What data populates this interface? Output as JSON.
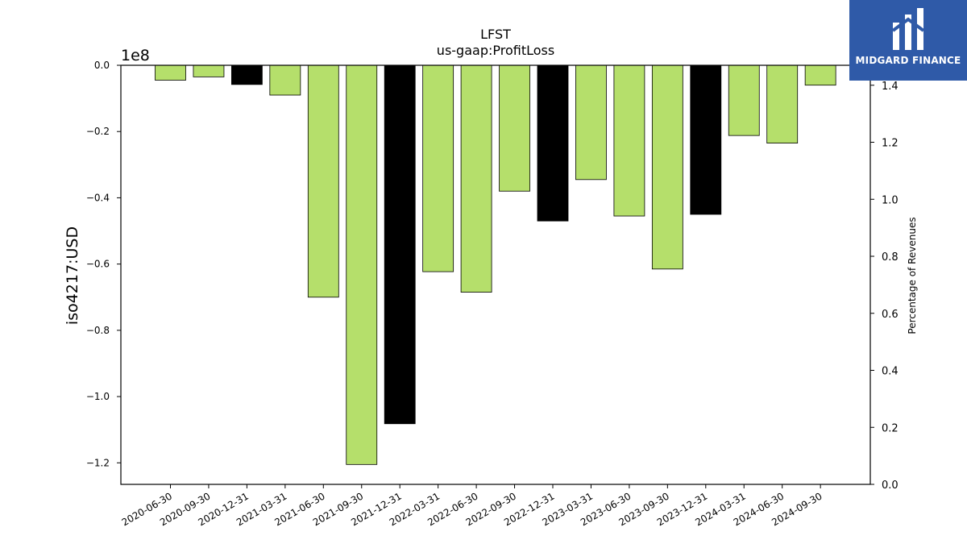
{
  "logo": {
    "text": "MIDGARD FINANCE"
  },
  "colors": {
    "background": "#ffffff",
    "bar_default": "#b5df6b",
    "bar_q4": "#000000",
    "logo_bg": "#2f5aa8"
  },
  "chart_data": {
    "type": "bar",
    "title": "LFST",
    "subtitle": "us-gaap:ProfitLoss",
    "ylabel": "iso4217:USD",
    "y_offset_label": "1e8",
    "y2label": "Percentage of Revenues",
    "ylim": [
      -1.265,
      0.0
    ],
    "y2lim": [
      0.0,
      1.47
    ],
    "yticks": [
      "0.0",
      "−0.2",
      "−0.4",
      "−0.6",
      "−0.8",
      "−1.0",
      "−1.2"
    ],
    "ytick_values": [
      0.0,
      -0.2,
      -0.4,
      -0.6,
      -0.8,
      -1.0,
      -1.2
    ],
    "y2ticks": [
      "0.0",
      "0.2",
      "0.4",
      "0.6",
      "0.8",
      "1.0",
      "1.2",
      "1.4"
    ],
    "y2tick_values": [
      0.0,
      0.2,
      0.4,
      0.6,
      0.8,
      1.0,
      1.2,
      1.4
    ],
    "categories": [
      "2020-06-30",
      "2020-09-30",
      "2020-12-31",
      "2021-03-31",
      "2021-06-30",
      "2021-09-30",
      "2021-12-31",
      "2022-03-31",
      "2022-06-30",
      "2022-09-30",
      "2022-12-31",
      "2023-03-31",
      "2023-06-30",
      "2023-09-30",
      "2023-12-31",
      "2024-03-31",
      "2024-06-30",
      "2024-09-30"
    ],
    "values": [
      -0.045,
      -0.035,
      -0.058,
      -0.09,
      -0.7,
      -1.205,
      -1.082,
      -0.623,
      -0.685,
      -0.38,
      -0.47,
      -0.345,
      -0.455,
      -0.615,
      -0.45,
      -0.212,
      -0.235,
      -0.06
    ],
    "highlight": [
      false,
      false,
      true,
      false,
      false,
      false,
      true,
      false,
      false,
      false,
      true,
      false,
      false,
      false,
      true,
      false,
      false,
      false
    ],
    "grid": false
  }
}
